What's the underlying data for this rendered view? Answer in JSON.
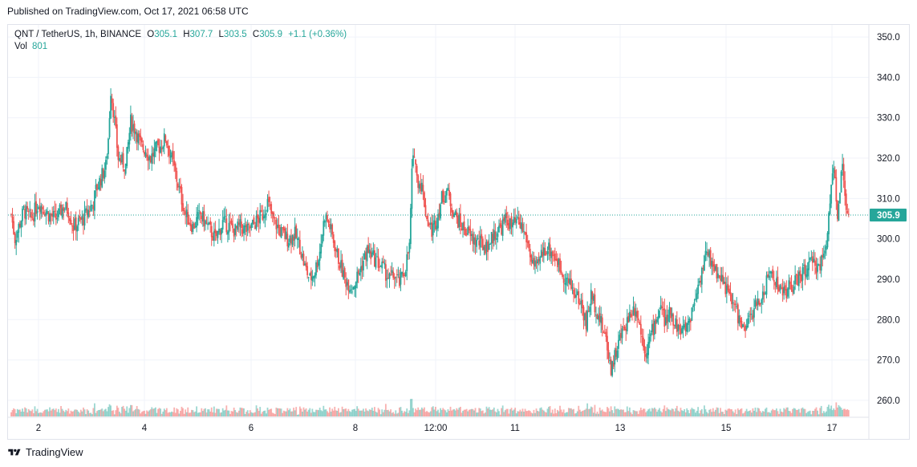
{
  "header": {
    "published": "Published on TradingView.com, Oct 17, 2021 06:58 UTC"
  },
  "legend": {
    "symbol": "QNT / TetherUS, 1h, BINANCE",
    "open_label": "O",
    "open": "305.1",
    "high_label": "H",
    "high": "307.7",
    "low_label": "L",
    "low": "303.5",
    "close_label": "C",
    "close": "305.9",
    "change": "+1.1 (+0.36%)",
    "vol_label": "Vol",
    "vol": "801"
  },
  "footer": {
    "brand": "TradingView"
  },
  "colors": {
    "up": "#26a69a",
    "down": "#ef5350",
    "grid": "#f0f3fa",
    "axis_text": "#131722"
  },
  "chart_data": {
    "type": "candlestick",
    "symbol": "QNT / TetherUS",
    "interval": "1h",
    "exchange": "BINANCE",
    "ylim": [
      256,
      353
    ],
    "y_ticks": [
      "260.0",
      "270.0",
      "280.0",
      "290.0",
      "300.0",
      "310.0",
      "320.0",
      "330.0",
      "340.0",
      "350.0"
    ],
    "x_ticks": [
      "2",
      "4",
      "6",
      "8",
      "12:00",
      "11",
      "13",
      "15",
      "17"
    ],
    "last_price_label": "305.9",
    "last_price": 305.9,
    "close_path": [
      [
        0,
        306
      ],
      [
        3,
        300
      ],
      [
        10,
        307
      ],
      [
        16,
        305
      ],
      [
        22,
        309
      ],
      [
        30,
        306
      ],
      [
        36,
        305
      ],
      [
        42,
        308
      ],
      [
        46,
        307
      ],
      [
        50,
        303
      ],
      [
        54,
        304
      ],
      [
        58,
        305
      ],
      [
        62,
        307
      ],
      [
        66,
        309
      ],
      [
        68,
        312
      ],
      [
        72,
        315
      ],
      [
        76,
        318
      ],
      [
        78,
        325
      ],
      [
        80,
        337
      ],
      [
        82,
        332
      ],
      [
        86,
        320
      ],
      [
        92,
        318
      ],
      [
        96,
        329
      ],
      [
        100,
        327
      ],
      [
        104,
        323
      ],
      [
        108,
        322
      ],
      [
        112,
        320
      ],
      [
        116,
        322
      ],
      [
        120,
        323
      ],
      [
        124,
        325
      ],
      [
        128,
        321
      ],
      [
        132,
        316
      ],
      [
        136,
        311
      ],
      [
        140,
        306
      ],
      [
        146,
        303
      ],
      [
        152,
        306
      ],
      [
        158,
        303
      ],
      [
        164,
        300
      ],
      [
        170,
        304
      ],
      [
        176,
        303
      ],
      [
        180,
        302
      ],
      [
        184,
        303
      ],
      [
        190,
        302
      ],
      [
        196,
        304
      ],
      [
        202,
        306
      ],
      [
        206,
        309
      ],
      [
        210,
        305
      ],
      [
        216,
        302
      ],
      [
        222,
        300
      ],
      [
        228,
        301
      ],
      [
        232,
        298
      ],
      [
        236,
        293
      ],
      [
        240,
        290
      ],
      [
        244,
        292
      ],
      [
        248,
        297
      ],
      [
        252,
        306
      ],
      [
        256,
        303
      ],
      [
        262,
        296
      ],
      [
        268,
        290
      ],
      [
        274,
        288
      ],
      [
        280,
        292
      ],
      [
        286,
        297
      ],
      [
        292,
        295
      ],
      [
        298,
        293
      ],
      [
        304,
        290
      ],
      [
        308,
        291
      ],
      [
        312,
        289
      ],
      [
        316,
        292
      ],
      [
        320,
        298
      ],
      [
        322,
        316
      ],
      [
        324,
        322
      ],
      [
        326,
        315
      ],
      [
        330,
        313
      ],
      [
        334,
        305
      ],
      [
        338,
        302
      ],
      [
        342,
        305
      ],
      [
        346,
        310
      ],
      [
        350,
        312
      ],
      [
        354,
        308
      ],
      [
        358,
        305
      ],
      [
        362,
        303
      ],
      [
        366,
        302
      ],
      [
        370,
        300
      ],
      [
        376,
        299
      ],
      [
        382,
        298
      ],
      [
        388,
        301
      ],
      [
        394,
        303
      ],
      [
        398,
        305
      ],
      [
        402,
        303
      ],
      [
        406,
        304
      ],
      [
        410,
        303
      ],
      [
        414,
        300
      ],
      [
        418,
        295
      ],
      [
        422,
        292
      ],
      [
        426,
        296
      ],
      [
        430,
        298
      ],
      [
        434,
        297
      ],
      [
        438,
        295
      ],
      [
        442,
        292
      ],
      [
        446,
        290
      ],
      [
        452,
        287
      ],
      [
        458,
        284
      ],
      [
        462,
        279
      ],
      [
        466,
        286
      ],
      [
        470,
        283
      ],
      [
        474,
        279
      ],
      [
        478,
        275
      ],
      [
        482,
        268
      ],
      [
        486,
        272
      ],
      [
        490,
        276
      ],
      [
        494,
        279
      ],
      [
        498,
        282
      ],
      [
        502,
        283
      ],
      [
        506,
        277
      ],
      [
        510,
        272
      ],
      [
        514,
        276
      ],
      [
        518,
        280
      ],
      [
        522,
        283
      ],
      [
        526,
        279
      ],
      [
        530,
        282
      ],
      [
        534,
        279
      ],
      [
        538,
        277
      ],
      [
        542,
        278
      ],
      [
        546,
        281
      ],
      [
        550,
        286
      ],
      [
        554,
        291
      ],
      [
        558,
        296
      ],
      [
        562,
        295
      ],
      [
        566,
        292
      ],
      [
        570,
        291
      ],
      [
        574,
        288
      ],
      [
        578,
        285
      ],
      [
        582,
        283
      ],
      [
        586,
        279
      ],
      [
        590,
        277
      ],
      [
        594,
        281
      ],
      [
        598,
        283
      ],
      [
        602,
        285
      ],
      [
        606,
        288
      ],
      [
        610,
        292
      ],
      [
        614,
        290
      ],
      [
        618,
        287
      ],
      [
        622,
        287
      ],
      [
        626,
        288
      ],
      [
        630,
        289
      ],
      [
        634,
        291
      ],
      [
        638,
        292
      ],
      [
        642,
        294
      ],
      [
        646,
        293
      ],
      [
        650,
        294
      ],
      [
        654,
        296
      ],
      [
        656,
        303
      ],
      [
        658,
        310
      ],
      [
        660,
        318
      ],
      [
        662,
        315
      ],
      [
        664,
        303
      ],
      [
        666,
        313
      ],
      [
        668,
        317
      ],
      [
        670,
        310
      ],
      [
        672,
        306
      ],
      [
        673,
        305.9
      ]
    ],
    "volume_note": "volume histogram, spikes near day 2-3, 8, 11, 13 and 17"
  }
}
